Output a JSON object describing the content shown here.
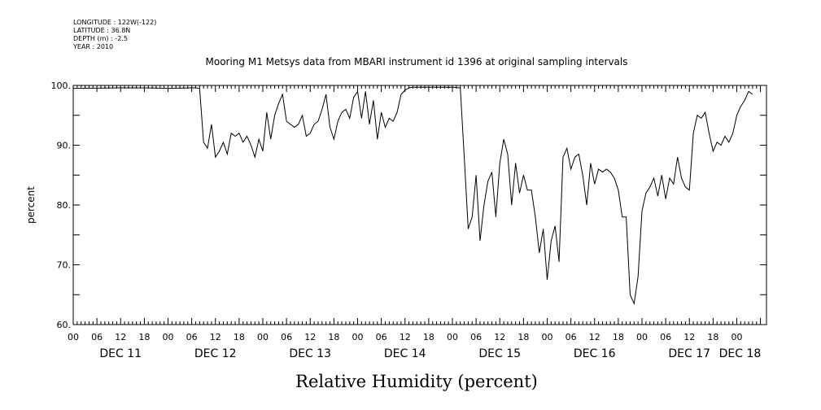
{
  "header": {
    "meta_lines": [
      "LONGITUDE : 122W(-122)",
      "LATITUDE : 36.8N",
      "DEPTH (m) : -2.5",
      "YEAR : 2010"
    ]
  },
  "chart_data": {
    "type": "line",
    "title": "Mooring M1 Metsys data from MBARI instrument id 1396 at original sampling intervals",
    "xlabel": "Relative Humidity (percent)",
    "ylabel": "percent",
    "ylim": [
      60,
      100
    ],
    "y_ticks": [
      60,
      70,
      80,
      90,
      100
    ],
    "y_tick_labels": [
      "60.",
      "70.",
      "80.",
      "90.",
      "100."
    ],
    "hour_tick_labels": [
      "00",
      "06",
      "12",
      "18",
      "00",
      "06",
      "12",
      "18",
      "00",
      "06",
      "12",
      "18",
      "00",
      "06",
      "12",
      "18",
      "00",
      "06",
      "12",
      "18",
      "00",
      "06",
      "12",
      "18",
      "00",
      "06",
      "12",
      "18",
      "00"
    ],
    "day_labels": [
      "DEC 11",
      "DEC 12",
      "DEC 13",
      "DEC 14",
      "DEC 15",
      "DEC 16",
      "DEC 17",
      "DEC 18"
    ],
    "grid": false,
    "legend": "none",
    "line_color": "#000000",
    "series": [
      {
        "x": [
          "DEC 11 00:00",
          "DEC 11 12:00",
          "DEC 11 18:00",
          "DEC 12 00:00",
          "DEC 12 06:00",
          "DEC 12 07:00",
          "DEC 12 08:00",
          "DEC 12 09:00",
          "DEC 12 10:00",
          "DEC 12 11:00",
          "DEC 12 12:00",
          "DEC 12 13:00",
          "DEC 12 14:00",
          "DEC 12 15:00",
          "DEC 12 16:00",
          "DEC 12 17:00",
          "DEC 12 18:00",
          "DEC 12 19:00",
          "DEC 12 20:00",
          "DEC 12 21:00",
          "DEC 12 22:00",
          "DEC 12 23:00",
          "DEC 13 00:00",
          "DEC 13 01:00",
          "DEC 13 02:00",
          "DEC 13 03:00",
          "DEC 13 04:00",
          "DEC 13 05:00",
          "DEC 13 06:00",
          "DEC 13 07:00",
          "DEC 13 08:00",
          "DEC 13 09:00",
          "DEC 13 10:00",
          "DEC 13 11:00",
          "DEC 13 12:00",
          "DEC 13 13:00",
          "DEC 13 14:00",
          "DEC 13 15:00",
          "DEC 13 16:00",
          "DEC 13 17:00",
          "DEC 13 18:00",
          "DEC 13 19:00",
          "DEC 13 20:00",
          "DEC 13 21:00",
          "DEC 13 22:00",
          "DEC 13 23:00",
          "DEC 14 00:00",
          "DEC 14 01:00",
          "DEC 14 02:00",
          "DEC 14 03:00",
          "DEC 14 04:00",
          "DEC 14 05:00",
          "DEC 14 06:00",
          "DEC 14 07:00",
          "DEC 14 08:00",
          "DEC 14 09:00",
          "DEC 14 10:00",
          "DEC 14 11:00",
          "DEC 14 12:00",
          "DEC 14 13:00",
          "DEC 14 14:00",
          "DEC 14 16:00",
          "DEC 14 18:00",
          "DEC 14 20:00",
          "DEC 15 00:00",
          "DEC 15 02:00",
          "DEC 15 03:00",
          "DEC 15 04:00",
          "DEC 15 05:00",
          "DEC 15 06:00",
          "DEC 15 07:00",
          "DEC 15 08:00",
          "DEC 15 09:00",
          "DEC 15 10:00",
          "DEC 15 11:00",
          "DEC 15 12:00",
          "DEC 15 13:00",
          "DEC 15 14:00",
          "DEC 15 15:00",
          "DEC 15 16:00",
          "DEC 15 17:00",
          "DEC 15 18:00",
          "DEC 15 19:00",
          "DEC 15 20:00",
          "DEC 15 21:00",
          "DEC 15 22:00",
          "DEC 15 23:00",
          "DEC 16 00:00",
          "DEC 16 01:00",
          "DEC 16 02:00",
          "DEC 16 03:00",
          "DEC 16 04:00",
          "DEC 16 05:00",
          "DEC 16 06:00",
          "DEC 16 07:00",
          "DEC 16 08:00",
          "DEC 16 09:00",
          "DEC 16 10:00",
          "DEC 16 11:00",
          "DEC 16 12:00",
          "DEC 16 13:00",
          "DEC 16 14:00",
          "DEC 16 15:00",
          "DEC 16 16:00",
          "DEC 16 17:00",
          "DEC 16 18:00",
          "DEC 16 19:00",
          "DEC 16 20:00",
          "DEC 16 21:00",
          "DEC 16 22:00",
          "DEC 16 23:00",
          "DEC 17 00:00",
          "DEC 17 01:00",
          "DEC 17 02:00",
          "DEC 17 03:00",
          "DEC 17 04:00",
          "DEC 17 05:00",
          "DEC 17 06:00",
          "DEC 17 07:00",
          "DEC 17 08:00",
          "DEC 17 09:00",
          "DEC 17 10:00",
          "DEC 17 11:00",
          "DEC 17 12:00",
          "DEC 17 13:00",
          "DEC 17 14:00",
          "DEC 17 15:00",
          "DEC 17 16:00",
          "DEC 17 17:00",
          "DEC 17 18:00",
          "DEC 17 19:00",
          "DEC 17 20:00",
          "DEC 17 21:00",
          "DEC 17 22:00",
          "DEC 17 23:00",
          "DEC 18 00:00",
          "DEC 18 01:00",
          "DEC 18 02:00",
          "DEC 18 03:00",
          "DEC 18 04:00"
        ],
        "y": [
          99.5,
          99.6,
          99.6,
          99.5,
          99.6,
          99.6,
          99.5,
          90.5,
          89.5,
          93.5,
          88.0,
          89.0,
          90.5,
          88.5,
          92.0,
          91.5,
          92.0,
          90.5,
          91.5,
          90.0,
          88.0,
          91.0,
          89.0,
          95.5,
          91.0,
          95.0,
          97.0,
          98.5,
          94.0,
          93.5,
          93.0,
          93.5,
          95.0,
          91.5,
          92.0,
          93.5,
          94.0,
          96.0,
          98.5,
          93.0,
          91.0,
          94.0,
          95.5,
          96.0,
          94.5,
          98.0,
          99.0,
          94.5,
          99.0,
          93.5,
          97.5,
          91.0,
          95.5,
          93.0,
          94.5,
          94.0,
          95.5,
          98.5,
          99.2,
          99.6,
          99.7,
          99.7,
          99.7,
          99.7,
          99.7,
          99.6,
          88.0,
          76.0,
          78.0,
          85.0,
          74.0,
          80.0,
          84.0,
          85.5,
          78.0,
          87.0,
          91.0,
          88.5,
          80.0,
          87.0,
          82.0,
          85.0,
          82.5,
          82.5,
          78.0,
          72.0,
          76.0,
          67.5,
          74.0,
          76.5,
          70.5,
          88.0,
          89.5,
          86.0,
          88.0,
          88.5,
          85.0,
          80.0,
          87.0,
          83.5,
          86.0,
          85.5,
          86.0,
          85.5,
          84.5,
          82.5,
          78.0,
          78.0,
          65.0,
          63.5,
          68.0,
          79.0,
          82.0,
          83.0,
          84.5,
          81.5,
          85.0,
          81.0,
          84.5,
          83.5,
          88.0,
          84.5,
          83.0,
          82.5,
          92.0,
          95.0,
          94.5,
          95.5,
          92.0,
          89.0,
          90.5,
          90.0,
          91.5,
          90.5,
          92.0,
          95.0,
          96.5,
          97.5,
          99.0,
          98.5
        ]
      }
    ]
  }
}
